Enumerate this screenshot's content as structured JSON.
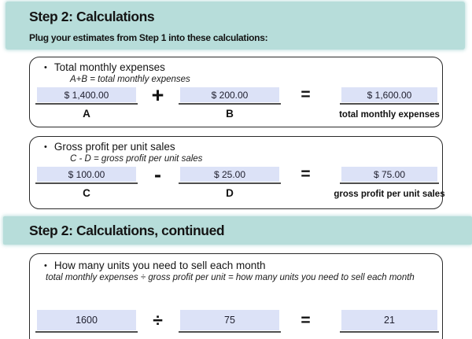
{
  "colors": {
    "band_bg": "#b7ddda",
    "field_bg": "#dce2f7",
    "field_underline": "#4f4f4f",
    "box_border": "#2a2a2a"
  },
  "header": {
    "title": "Step 2: Calculations",
    "subtitle": "Plug your estimates from Step 1 into these calculations:"
  },
  "header_continued": {
    "title": "Step 2: Calculations, continued"
  },
  "calculations": [
    {
      "bullet": "•",
      "title": "Total monthly expenses",
      "formula": "A+B = total monthly expenses",
      "operand1_value": "$ 1,400.00",
      "operand1_label": "A",
      "operator": "+",
      "operand2_value": "$ 200.00",
      "operand2_label": "B",
      "equals": "=",
      "result_value": "$ 1,600.00",
      "result_label": "total monthly expenses"
    },
    {
      "bullet": "•",
      "title": "Gross profit per unit sales",
      "formula": "C - D = gross profit per unit sales",
      "operand1_value": "$ 100.00",
      "operand1_label": "C",
      "operator": "-",
      "operand2_value": "$ 25.00",
      "operand2_label": "D",
      "equals": "=",
      "result_value": "$ 75.00",
      "result_label": "gross profit per unit sales"
    },
    {
      "bullet": "•",
      "title": "How many units you need to sell each month",
      "formula": "total monthly expenses ÷ gross profit per unit = how many units you need to sell each month",
      "operand1_value": "1600",
      "operator": "÷",
      "operand2_value": "75",
      "equals": "=",
      "result_value": "21"
    }
  ]
}
